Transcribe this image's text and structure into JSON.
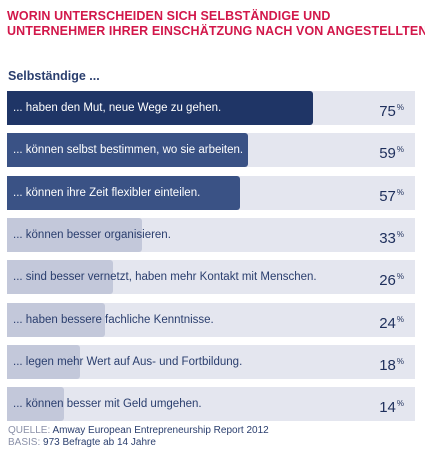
{
  "title_line1": "WORIN UNTERSCHEIDEN SICH SELBSTÄNDIGE UND",
  "title_line2": "UNTERNEHMER IHRER EINSCHÄTZUNG NACH VON ANGESTELLTEN?",
  "subtitle": "Selbständige ...",
  "source_label": "QUELLE:",
  "source_text": "Amway European Entrepreneurship Report 2012",
  "basis_label": "BASIS:",
  "basis_text": "973 Befragte ab 14 Jahre",
  "colors": {
    "title": "#d2174a",
    "bar_dark": "#1f3566",
    "bar_mid": "#3a5285",
    "bar_light": "#c3c8da",
    "track": "#e4e6ef",
    "text_dark": "#2a3e6e"
  },
  "chart_data": {
    "type": "bar",
    "orientation": "horizontal",
    "unit": "%",
    "xlim": [
      0,
      100
    ],
    "categories": [
      "... haben den Mut, neue Wege zu gehen.",
      "... können selbst bestimmen, wo sie arbeiten.",
      "... können ihre Zeit flexibler einteilen.",
      "... können besser organisieren.",
      "... sind besser vernetzt, haben mehr Kontakt mit Menschen.",
      "... haben bessere fachliche Kenntnisse.",
      "... legen mehr Wert auf Aus- und Fortbildung.",
      "... können besser mit Geld umgehen."
    ],
    "values": [
      75,
      59,
      57,
      33,
      26,
      24,
      18,
      14
    ]
  }
}
